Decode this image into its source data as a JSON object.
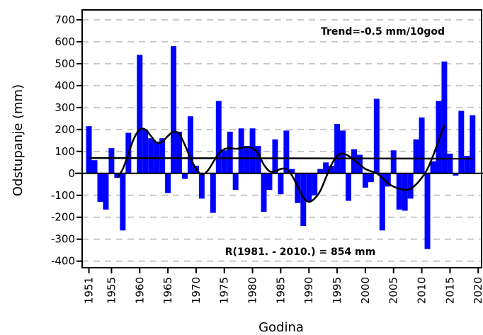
{
  "chart_data": {
    "type": "bar",
    "xlabel": "Godina",
    "ylabel": "Odstupanje (mm)",
    "ylim": [
      -430,
      745
    ],
    "xlim": [
      1949.8,
      2020.6
    ],
    "yticks": [
      -400,
      -300,
      -200,
      -100,
      0,
      100,
      200,
      300,
      400,
      500,
      600,
      700
    ],
    "xticks": [
      1951,
      1955,
      1960,
      1965,
      1970,
      1975,
      1980,
      1985,
      1990,
      1995,
      2000,
      2005,
      2010,
      2015,
      2020
    ],
    "grid": "horizontal dashed",
    "colors": {
      "bars": "#0000ff",
      "lines": "#000000"
    },
    "years": [
      1951,
      1952,
      1953,
      1954,
      1955,
      1956,
      1957,
      1958,
      1959,
      1960,
      1961,
      1962,
      1963,
      1964,
      1965,
      1966,
      1967,
      1968,
      1969,
      1970,
      1971,
      1972,
      1973,
      1974,
      1975,
      1976,
      1977,
      1978,
      1979,
      1980,
      1981,
      1982,
      1983,
      1984,
      1985,
      1986,
      1987,
      1988,
      1989,
      1990,
      1991,
      1992,
      1993,
      1994,
      1995,
      1996,
      1997,
      1998,
      1999,
      2000,
      2001,
      2002,
      2003,
      2004,
      2005,
      2006,
      2007,
      2008,
      2009,
      2010,
      2011,
      2012,
      2013,
      2014,
      2015,
      2016,
      2017,
      2018,
      2019
    ],
    "values": [
      215,
      60,
      -130,
      -165,
      115,
      -20,
      -260,
      185,
      0,
      540,
      200,
      160,
      145,
      160,
      -90,
      580,
      190,
      -25,
      260,
      35,
      -115,
      0,
      -180,
      330,
      105,
      190,
      -75,
      205,
      125,
      205,
      125,
      -175,
      -75,
      155,
      -95,
      195,
      20,
      -135,
      -240,
      -130,
      -100,
      20,
      50,
      35,
      225,
      195,
      -125,
      110,
      85,
      -65,
      -40,
      340,
      -260,
      -60,
      105,
      -165,
      -170,
      -115,
      155,
      255,
      -345,
      55,
      330,
      510,
      90,
      -10,
      285,
      80,
      265
    ],
    "trend_label": "Trend=-0.5 mm/10god",
    "trend_line": {
      "x": [
        1951,
        2019
      ],
      "y": [
        70,
        67
      ]
    },
    "smooth_line": {
      "x": [
        1956,
        1957,
        1958,
        1959,
        1960,
        1961,
        1962,
        1963,
        1964,
        1965,
        1966,
        1967,
        1968,
        1969,
        1970,
        1971,
        1972,
        1973,
        1974,
        1975,
        1976,
        1977,
        1978,
        1979,
        1980,
        1981,
        1982,
        1983,
        1984,
        1985,
        1986,
        1987,
        1988,
        1989,
        1990,
        1991,
        1992,
        1993,
        1994,
        1995,
        1996,
        1997,
        1998,
        1999,
        2000,
        2001,
        2002,
        2003,
        2004,
        2005,
        2006,
        2007,
        2008,
        2009,
        2010,
        2011,
        2012,
        2013,
        2014
      ],
      "y": [
        -20,
        20,
        90,
        160,
        200,
        200,
        170,
        140,
        145,
        170,
        190,
        180,
        130,
        70,
        20,
        -5,
        10,
        50,
        90,
        110,
        115,
        112,
        115,
        120,
        115,
        90,
        40,
        10,
        10,
        20,
        20,
        -10,
        -60,
        -110,
        -130,
        -115,
        -80,
        -20,
        40,
        80,
        90,
        80,
        60,
        40,
        20,
        10,
        0,
        -20,
        -45,
        -60,
        -70,
        -75,
        -70,
        -50,
        -20,
        20,
        80,
        150,
        220
      ]
    },
    "reference_label": "R(1981. - 2010.) = 854 mm"
  }
}
